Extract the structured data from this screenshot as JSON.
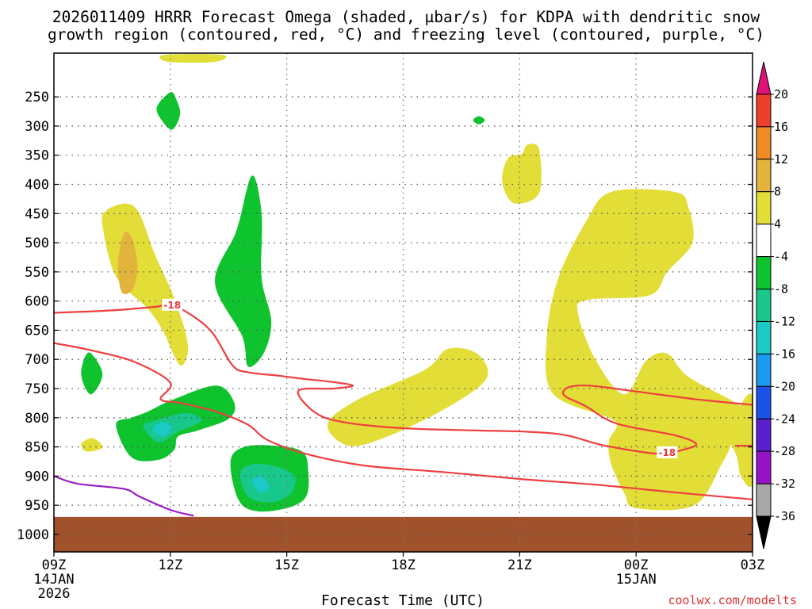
{
  "chart_data": {
    "type": "contour",
    "title_line1": "2026011409 HRRR Forecast Omega (shaded, µbar/s) for KDPA with dendritic snow",
    "title_line2": "growth region (contoured, red, °C) and freezing level (contoured, purple, °C)",
    "xlabel": "Forecast Time (UTC)",
    "ylabel": "",
    "credit": "coolwx.com/modelts",
    "x_ticks": [
      {
        "hour": 0,
        "label": "09Z",
        "sub1": "14JAN",
        "sub2": "2026"
      },
      {
        "hour": 3,
        "label": "12Z",
        "sub1": "",
        "sub2": ""
      },
      {
        "hour": 6,
        "label": "15Z",
        "sub1": "",
        "sub2": ""
      },
      {
        "hour": 9,
        "label": "18Z",
        "sub1": "",
        "sub2": ""
      },
      {
        "hour": 12,
        "label": "21Z",
        "sub1": "",
        "sub2": ""
      },
      {
        "hour": 15,
        "label": "00Z",
        "sub1": "15JAN",
        "sub2": ""
      },
      {
        "hour": 18,
        "label": "03Z",
        "sub1": "",
        "sub2": ""
      }
    ],
    "y_ticks": [
      250,
      300,
      350,
      400,
      450,
      500,
      550,
      600,
      650,
      700,
      750,
      800,
      850,
      900,
      950,
      1000
    ],
    "x_range_hours": [
      0,
      18
    ],
    "y_range_hpa": [
      1030,
      175
    ],
    "surface_hpa": 970,
    "colorbar": {
      "labels": [
        "20",
        "16",
        "12",
        "8",
        "4",
        "-4",
        "-8",
        "-12",
        "-16",
        "-20",
        "-24",
        "-28",
        "-32",
        "-36"
      ],
      "colors": [
        "#e0137a",
        "#ee3f2c",
        "#ef8a25",
        "#e3b43b",
        "#e3dd37",
        "#ffffff",
        "#0ec32d",
        "#18c78a",
        "#1bc9c5",
        "#1b9af0",
        "#1b52e8",
        "#5a1fcf",
        "#9813c7",
        "#a8a8a8",
        "#000000"
      ]
    },
    "omega_regions": [
      {
        "level": 8,
        "color": "#e3dd37",
        "points": [
          [
            2.85,
            178
          ],
          [
            4.35,
            178
          ],
          [
            4.15,
            190
          ],
          [
            2.95,
            190
          ]
        ]
      },
      {
        "level": -8,
        "color": "#0ec32d",
        "points": [
          [
            3.0,
            242
          ],
          [
            2.65,
            268
          ],
          [
            2.8,
            292
          ],
          [
            3.05,
            306
          ],
          [
            3.25,
            280
          ],
          [
            3.15,
            254
          ]
        ]
      },
      {
        "level": -8,
        "color": "#0ec32d",
        "points": [
          [
            10.95,
            283
          ],
          [
            10.8,
            290
          ],
          [
            10.95,
            297
          ],
          [
            11.1,
            290
          ]
        ]
      },
      {
        "level": 8,
        "color": "#e3dd37",
        "points": [
          [
            11.7,
            355
          ],
          [
            11.55,
            395
          ],
          [
            11.85,
            432
          ],
          [
            12.5,
            415
          ],
          [
            12.5,
            340
          ],
          [
            12.2,
            332
          ],
          [
            12.05,
            348
          ]
        ]
      },
      {
        "level": 8,
        "color": "#e3dd37",
        "points": [
          [
            1.25,
            470
          ],
          [
            1.6,
            558
          ],
          [
            2.4,
            612
          ],
          [
            2.8,
            650
          ],
          [
            3.25,
            710
          ],
          [
            3.45,
            675
          ],
          [
            3.1,
            595
          ],
          [
            2.6,
            520
          ],
          [
            2.2,
            450
          ],
          [
            1.85,
            433
          ],
          [
            1.35,
            445
          ]
        ]
      },
      {
        "level": 12,
        "color": "#e3b43b",
        "points": [
          [
            1.8,
            485
          ],
          [
            1.65,
            535
          ],
          [
            1.75,
            585
          ],
          [
            2.05,
            578
          ],
          [
            2.15,
            535
          ],
          [
            2.0,
            490
          ]
        ]
      },
      {
        "level": -8,
        "color": "#0ec32d",
        "points": [
          [
            5.1,
            385
          ],
          [
            4.7,
            480
          ],
          [
            4.15,
            568
          ],
          [
            4.85,
            660
          ],
          [
            5.0,
            712
          ],
          [
            5.4,
            690
          ],
          [
            5.6,
            635
          ],
          [
            5.35,
            560
          ],
          [
            5.35,
            450
          ]
        ]
      },
      {
        "level": 8,
        "color": "#e3dd37",
        "points": [
          [
            7.8,
            770
          ],
          [
            7.05,
            812
          ],
          [
            7.6,
            848
          ],
          [
            8.6,
            832
          ],
          [
            10.2,
            780
          ],
          [
            11.15,
            732
          ],
          [
            10.9,
            690
          ],
          [
            10.15,
            682
          ],
          [
            9.55,
            718
          ]
        ]
      },
      {
        "level": 8,
        "color": "#e3dd37",
        "points": [
          [
            13.7,
            465
          ],
          [
            13.0,
            560
          ],
          [
            12.7,
            660
          ],
          [
            12.85,
            758
          ],
          [
            14.3,
            800
          ],
          [
            14.5,
            815
          ],
          [
            14.3,
            840
          ],
          [
            14.35,
            878
          ],
          [
            14.7,
            930
          ],
          [
            15.0,
            955
          ],
          [
            16.5,
            950
          ],
          [
            17.2,
            880
          ],
          [
            17.5,
            840
          ],
          [
            17.85,
            790
          ],
          [
            16.35,
            730
          ],
          [
            15.8,
            690
          ],
          [
            15.25,
            703
          ],
          [
            14.7,
            760
          ],
          [
            13.95,
            700
          ],
          [
            13.5,
            620
          ],
          [
            13.75,
            598
          ],
          [
            15.35,
            590
          ],
          [
            15.8,
            550
          ],
          [
            16.45,
            500
          ],
          [
            16.35,
            440
          ],
          [
            16.0,
            413
          ],
          [
            14.35,
            413
          ]
        ]
      },
      {
        "level": 8,
        "color": "#e3dd37",
        "points": [
          [
            18.0,
            765
          ],
          [
            17.6,
            790
          ],
          [
            17.4,
            830
          ],
          [
            17.6,
            868
          ],
          [
            17.7,
            900
          ],
          [
            18.0,
            910
          ]
        ]
      },
      {
        "level": 8,
        "color": "#e3dd37",
        "points": [
          [
            0.7,
            845
          ],
          [
            0.85,
            858
          ],
          [
            1.25,
            851
          ],
          [
            1.0,
            835
          ]
        ]
      },
      {
        "level": -8,
        "color": "#0ec32d",
        "points": [
          [
            0.9,
            688
          ],
          [
            0.7,
            725
          ],
          [
            0.95,
            760
          ],
          [
            1.25,
            725
          ]
        ]
      },
      {
        "level": -8,
        "color": "#0ec32d",
        "points": [
          [
            1.6,
            812
          ],
          [
            2.0,
            868
          ],
          [
            2.7,
            872
          ],
          [
            3.1,
            855
          ],
          [
            3.2,
            832
          ],
          [
            3.7,
            822
          ],
          [
            4.5,
            802
          ],
          [
            4.65,
            775
          ],
          [
            4.2,
            745
          ],
          [
            3.1,
            768
          ],
          [
            2.4,
            790
          ],
          [
            2.0,
            800
          ]
        ]
      },
      {
        "level": -12,
        "color": "#18c78a",
        "points": [
          [
            2.3,
            815
          ],
          [
            2.7,
            842
          ],
          [
            3.2,
            824
          ],
          [
            3.8,
            805
          ],
          [
            3.4,
            792
          ],
          [
            2.6,
            805
          ]
        ]
      },
      {
        "level": -16,
        "color": "#1bc9c5",
        "points": [
          [
            2.55,
            822
          ],
          [
            2.85,
            832
          ],
          [
            3.05,
            815
          ],
          [
            2.75,
            808
          ]
        ]
      },
      {
        "level": -8,
        "color": "#0ec32d",
        "points": [
          [
            4.55,
            875
          ],
          [
            4.75,
            940
          ],
          [
            5.2,
            960
          ],
          [
            6.0,
            955
          ],
          [
            6.5,
            935
          ],
          [
            6.55,
            890
          ],
          [
            6.4,
            858
          ],
          [
            5.7,
            848
          ],
          [
            4.9,
            850
          ]
        ]
      },
      {
        "level": -12,
        "color": "#18c78a",
        "points": [
          [
            4.8,
            895
          ],
          [
            5.0,
            935
          ],
          [
            5.6,
            945
          ],
          [
            6.1,
            930
          ],
          [
            6.2,
            900
          ],
          [
            5.7,
            883
          ],
          [
            5.1,
            880
          ]
        ]
      },
      {
        "level": -16,
        "color": "#1bc9c5",
        "points": [
          [
            5.1,
            908
          ],
          [
            5.3,
            928
          ],
          [
            5.55,
            918
          ],
          [
            5.35,
            900
          ]
        ]
      }
    ],
    "dgz_contours": [
      {
        "label": "-18",
        "label_at": [
          3.05,
          607
        ],
        "color": "#ee3f3f",
        "points": [
          [
            0.0,
            620
          ],
          [
            1.5,
            616
          ],
          [
            2.6,
            610
          ],
          [
            3.1,
            608
          ],
          [
            4.0,
            648
          ],
          [
            4.6,
            710
          ],
          [
            5.0,
            722
          ],
          [
            5.8,
            728
          ],
          [
            6.5,
            734
          ],
          [
            7.1,
            738
          ],
          [
            7.7,
            745
          ],
          [
            7.2,
            750
          ],
          [
            6.3,
            754
          ],
          [
            6.75,
            792
          ],
          [
            7.5,
            808
          ],
          [
            9.0,
            818
          ],
          [
            11.0,
            822
          ],
          [
            12.2,
            824
          ],
          [
            13.2,
            830
          ],
          [
            14.2,
            848
          ],
          [
            15.6,
            862
          ],
          [
            16.2,
            855
          ],
          [
            16.55,
            845
          ],
          [
            16.0,
            830
          ],
          [
            14.5,
            810
          ],
          [
            13.7,
            780
          ],
          [
            13.15,
            762
          ],
          [
            13.25,
            748
          ],
          [
            13.8,
            745
          ],
          [
            15.0,
            755
          ],
          [
            16.5,
            768
          ],
          [
            18.0,
            778
          ]
        ]
      },
      {
        "label": "-18",
        "label_at": [
          15.8,
          860
        ],
        "color": "#ee3f3f",
        "points": [
          [
            0.0,
            672
          ],
          [
            1.0,
            685
          ],
          [
            2.1,
            705
          ],
          [
            3.0,
            740
          ],
          [
            2.75,
            768
          ],
          [
            3.3,
            775
          ],
          [
            4.2,
            790
          ],
          [
            5.0,
            812
          ],
          [
            5.5,
            838
          ],
          [
            6.5,
            862
          ],
          [
            8.0,
            882
          ],
          [
            10.0,
            893
          ],
          [
            12.0,
            905
          ],
          [
            14.0,
            915
          ],
          [
            16.0,
            928
          ],
          [
            18.0,
            940
          ]
        ]
      },
      {
        "label": "",
        "label_at": [
          17.8,
          848
        ],
        "color": "#ee3f3f",
        "points": [
          [
            17.55,
            848
          ],
          [
            18.0,
            848
          ]
        ]
      }
    ],
    "freezing_level_contours": [
      {
        "label": "",
        "color": "#9a1ec4",
        "points": [
          [
            0.0,
            900
          ],
          [
            0.6,
            913
          ],
          [
            1.8,
            922
          ],
          [
            2.2,
            935
          ],
          [
            3.0,
            958
          ],
          [
            3.6,
            968
          ]
        ]
      }
    ]
  }
}
